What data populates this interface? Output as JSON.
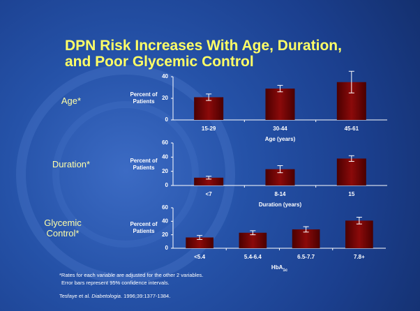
{
  "slide": {
    "title": [
      "DPN Risk Increases With Age, Duration,",
      "and Poor Glycemic Control"
    ],
    "footnotes": [
      "*Rates for each variable are adjusted for the other 2 variables.",
      "Error bars represent 95% confidence intervals."
    ],
    "citation": [
      "Tesfaye et al. ",
      "Diabetologia",
      ". 1996;39:1377-1384."
    ]
  },
  "chart_data": [
    {
      "type": "bar",
      "row_label": "Age*",
      "y_label": "Percent of Patients",
      "x_label": "Age (years)",
      "categories": [
        "15-29",
        "30-44",
        "45-61"
      ],
      "values": [
        21,
        29,
        35
      ],
      "errors": [
        3,
        3,
        10
      ],
      "color": "#8b0a0a",
      "ylim": [
        0,
        40
      ],
      "yticks": [
        0,
        20,
        40
      ],
      "grid": false
    },
    {
      "type": "bar",
      "row_label": "Duration*",
      "y_label": "Percent of Patients",
      "x_label": "Duration (years)",
      "categories": [
        "<7",
        "8-14",
        "15"
      ],
      "values": [
        11,
        23,
        38
      ],
      "errors": [
        2,
        5,
        4
      ],
      "color": "#8b0a0a",
      "ylim": [
        0,
        60
      ],
      "yticks": [
        0,
        20,
        40,
        60
      ],
      "grid": false
    },
    {
      "type": "bar",
      "row_label": "Glycemic Control*",
      "y_label": "Percent of Patients",
      "x_label": "HbA",
      "x_label_subscript": "1c",
      "categories": [
        "<5.4",
        "5.4-6.4",
        "6.5-7.7",
        "7.8+"
      ],
      "values": [
        16,
        23,
        28,
        41
      ],
      "errors": [
        3,
        3,
        4,
        5
      ],
      "color": "#8b0a0a",
      "ylim": [
        0,
        60
      ],
      "yticks": [
        0,
        20,
        40,
        60
      ],
      "grid": false
    }
  ]
}
